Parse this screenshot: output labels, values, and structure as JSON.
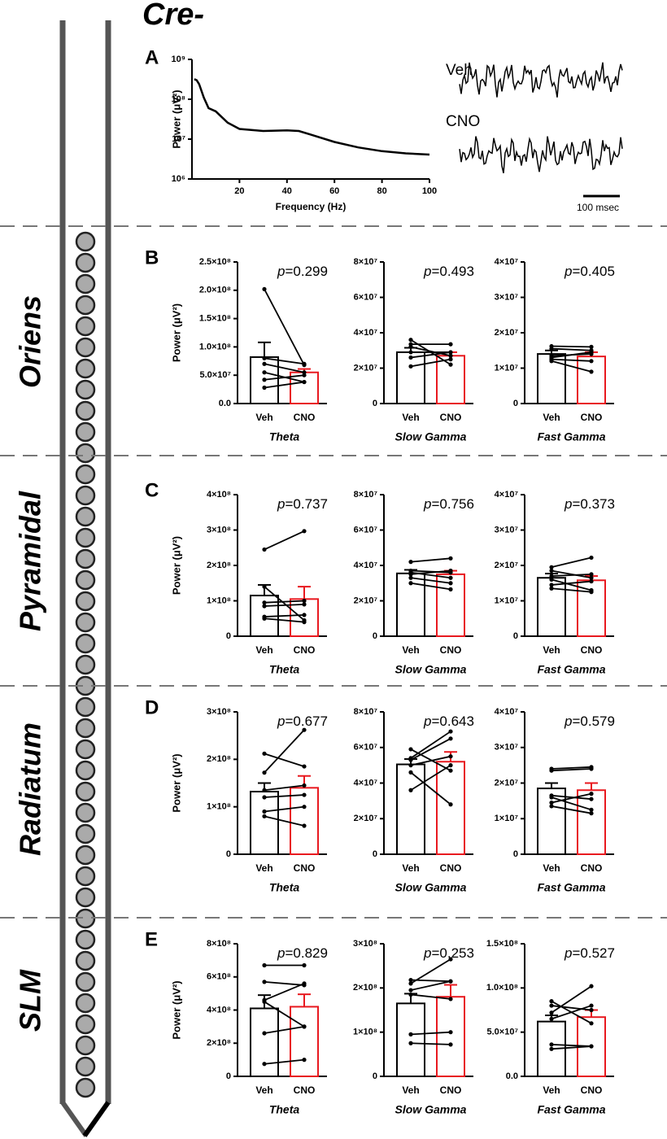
{
  "figure": {
    "title": "Cre-",
    "layers": [
      "Oriens",
      "Pyramidal",
      "Radiatum",
      "SLM"
    ],
    "panels": [
      "A",
      "B",
      "C",
      "D",
      "E"
    ]
  },
  "chart_data": [
    {
      "type": "line",
      "log_y": true,
      "color": "#000000",
      "xlabel": "Frequency (Hz)",
      "ylabel": "Power (μV²)",
      "x": [
        1,
        2,
        3,
        5,
        7,
        10,
        15,
        20,
        30,
        40,
        45,
        50,
        60,
        70,
        80,
        90,
        100
      ],
      "values": [
        320000000.0,
        300000000.0,
        240000000.0,
        110000000.0,
        60000000.0,
        50000000.0,
        26000000.0,
        18000000.0,
        16000000.0,
        16500000.0,
        16000000.0,
        13000000.0,
        8500000.0,
        6200000.0,
        5000000.0,
        4400000.0,
        4100000.0
      ],
      "xlim": [
        0,
        100
      ],
      "xticks": [
        20,
        40,
        60,
        80,
        100
      ],
      "ylim": [
        1000000.0,
        1000000000.0
      ],
      "yticks": [
        {
          "value": 1000000.0,
          "label": "10⁶"
        },
        {
          "value": 10000000.0,
          "label": "10⁷"
        },
        {
          "value": 100000000.0,
          "label": "10⁸"
        },
        {
          "value": 1000000000.0,
          "label": "10⁹"
        }
      ],
      "annotations": [
        "Veh",
        "CNO",
        "100 msec"
      ]
    },
    {
      "type": "bar",
      "categories": [
        "Veh",
        "CNO"
      ],
      "values": [
        82000000.0,
        55000000.0
      ],
      "errors": [
        26000000.0,
        6000000.0
      ],
      "colors": [
        "#000000",
        "#e8191f"
      ],
      "pairs": [
        [
          202000000.0,
          68000000.0
        ],
        [
          80000000.0,
          70000000.0
        ],
        [
          70000000.0,
          55000000.0
        ],
        [
          55000000.0,
          38000000.0
        ],
        [
          42000000.0,
          50000000.0
        ],
        [
          28000000.0,
          38000000.0
        ]
      ],
      "ylim": [
        0,
        250000000.0
      ],
      "yticks": [
        {
          "value": 0,
          "label": "0.0"
        },
        {
          "value": 50000000.0,
          "label": "5.0×10⁷"
        },
        {
          "value": 100000000.0,
          "label": "1.0×10⁸"
        },
        {
          "value": 150000000.0,
          "label": "1.5×10⁸"
        },
        {
          "value": 200000000.0,
          "label": "2.0×10⁸"
        },
        {
          "value": 250000000.0,
          "label": "2.5×10⁸"
        }
      ],
      "xlabel": "Theta",
      "ylabel": "Power (μV²)",
      "annotation": [
        "p",
        "=0.299"
      ]
    },
    {
      "type": "bar",
      "categories": [
        "Veh",
        "CNO"
      ],
      "values": [
        29000000.0,
        27000000.0
      ],
      "errors": [
        2500000.0,
        2000000.0
      ],
      "colors": [
        "#000000",
        "#e8191f"
      ],
      "pairs": [
        [
          36000000.0,
          22000000.0
        ],
        [
          33500000.0,
          33500000.0
        ],
        [
          32000000.0,
          27000000.0
        ],
        [
          29000000.0,
          29000000.0
        ],
        [
          26000000.0,
          29000000.0
        ],
        [
          21000000.0,
          25000000.0
        ]
      ],
      "ylim": [
        0,
        80000000.0
      ],
      "yticks": [
        0,
        {
          "value": 20000000.0,
          "label": "2×10⁷"
        },
        {
          "value": 40000000.0,
          "label": "4×10⁷"
        },
        {
          "value": 60000000.0,
          "label": "6×10⁷"
        },
        {
          "value": 80000000.0,
          "label": "8×10⁷"
        }
      ],
      "xlabel": "Slow Gamma",
      "annotation": [
        "p",
        "=0.493"
      ]
    },
    {
      "type": "bar",
      "categories": [
        "Veh",
        "CNO"
      ],
      "values": [
        14000000.0,
        13300000.0
      ],
      "errors": [
        1000000.0,
        1200000.0
      ],
      "colors": [
        "#000000",
        "#e8191f"
      ],
      "pairs": [
        [
          16200000.0,
          16000000.0
        ],
        [
          15500000.0,
          15000000.0
        ],
        [
          13500000.0,
          14000000.0
        ],
        [
          13000000.0,
          14500000.0
        ],
        [
          12500000.0,
          12000000.0
        ],
        [
          12000000.0,
          9000000.0
        ]
      ],
      "ylim": [
        0,
        40000000.0
      ],
      "yticks": [
        0,
        {
          "value": 10000000.0,
          "label": "1×10⁷"
        },
        {
          "value": 20000000.0,
          "label": "2×10⁷"
        },
        {
          "value": 30000000.0,
          "label": "3×10⁷"
        },
        {
          "value": 40000000.0,
          "label": "4×10⁷"
        }
      ],
      "xlabel": "Fast Gamma",
      "annotation": [
        "p",
        "=0.405"
      ]
    },
    {
      "type": "bar",
      "categories": [
        "Veh",
        "CNO"
      ],
      "values": [
        115000000.0,
        105000000.0
      ],
      "errors": [
        30000000.0,
        35000000.0
      ],
      "colors": [
        "#000000",
        "#e8191f"
      ],
      "pairs": [
        [
          245000000.0,
          297000000.0
        ],
        [
          140000000.0,
          45000000.0
        ],
        [
          95000000.0,
          100000000.0
        ],
        [
          85000000.0,
          90000000.0
        ],
        [
          55000000.0,
          60000000.0
        ],
        [
          50000000.0,
          40000000.0
        ]
      ],
      "ylim": [
        0,
        400000000.0
      ],
      "yticks": [
        0,
        {
          "value": 100000000.0,
          "label": "1×10⁸"
        },
        {
          "value": 200000000.0,
          "label": "2×10⁸"
        },
        {
          "value": 300000000.0,
          "label": "3×10⁸"
        },
        {
          "value": 400000000.0,
          "label": "4×10⁸"
        }
      ],
      "xlabel": "Theta",
      "ylabel": "Power (μV²)",
      "annotation": [
        "p",
        "=0.737"
      ]
    },
    {
      "type": "bar",
      "categories": [
        "Veh",
        "CNO"
      ],
      "values": [
        35500000.0,
        35000000.0
      ],
      "errors": [
        2000000.0,
        2000000.0
      ],
      "colors": [
        "#000000",
        "#e8191f"
      ],
      "pairs": [
        [
          42000000.0,
          44000000.0
        ],
        [
          37000000.0,
          36000000.0
        ],
        [
          36000000.0,
          33000000.0
        ],
        [
          35000000.0,
          37000000.0
        ],
        [
          33000000.0,
          30000000.0
        ],
        [
          30000000.0,
          26500000.0
        ]
      ],
      "ylim": [
        0,
        80000000.0
      ],
      "yticks": [
        0,
        {
          "value": 20000000.0,
          "label": "2×10⁷"
        },
        {
          "value": 40000000.0,
          "label": "4×10⁷"
        },
        {
          "value": 60000000.0,
          "label": "6×10⁷"
        },
        {
          "value": 80000000.0,
          "label": "8×10⁷"
        }
      ],
      "xlabel": "Slow Gamma",
      "annotation": [
        "p",
        "=0.756"
      ]
    },
    {
      "type": "bar",
      "categories": [
        "Veh",
        "CNO"
      ],
      "values": [
        16500000.0,
        15800000.0
      ],
      "errors": [
        1200000.0,
        1200000.0
      ],
      "colors": [
        "#000000",
        "#e8191f"
      ],
      "pairs": [
        [
          19500000.0,
          22200000.0
        ],
        [
          18500000.0,
          16500000.0
        ],
        [
          17000000.0,
          17500000.0
        ],
        [
          16000000.0,
          13000000.0
        ],
        [
          14500000.0,
          15500000.0
        ],
        [
          13500000.0,
          12500000.0
        ]
      ],
      "ylim": [
        0,
        40000000.0
      ],
      "yticks": [
        0,
        {
          "value": 10000000.0,
          "label": "1×10⁷"
        },
        {
          "value": 20000000.0,
          "label": "2×10⁷"
        },
        {
          "value": 30000000.0,
          "label": "3×10⁷"
        },
        {
          "value": 40000000.0,
          "label": "4×10⁷"
        }
      ],
      "xlabel": "Fast Gamma",
      "annotation": [
        "p",
        "=0.373"
      ]
    },
    {
      "type": "bar",
      "categories": [
        "Veh",
        "CNO"
      ],
      "values": [
        132000000.0,
        140000000.0
      ],
      "errors": [
        18000000.0,
        25000000.0
      ],
      "colors": [
        "#000000",
        "#e8191f"
      ],
      "pairs": [
        [
          212000000.0,
          185000000.0
        ],
        [
          172000000.0,
          262000000.0
        ],
        [
          135000000.0,
          145000000.0
        ],
        [
          120000000.0,
          125000000.0
        ],
        [
          90000000.0,
          100000000.0
        ],
        [
          80000000.0,
          60000000.0
        ]
      ],
      "ylim": [
        0,
        300000000.0
      ],
      "yticks": [
        0,
        {
          "value": 100000000.0,
          "label": "1×10⁸"
        },
        {
          "value": 200000000.0,
          "label": "2×10⁸"
        },
        {
          "value": 300000000.0,
          "label": "3×10⁸"
        }
      ],
      "xlabel": "Theta",
      "ylabel": "Power (μV²)",
      "annotation": [
        "p",
        "=0.677"
      ]
    },
    {
      "type": "bar",
      "categories": [
        "Veh",
        "CNO"
      ],
      "values": [
        50500000.0,
        52000000.0
      ],
      "errors": [
        3000000.0,
        5500000.0
      ],
      "colors": [
        "#000000",
        "#e8191f"
      ],
      "pairs": [
        [
          59000000.0,
          47000000.0
        ],
        [
          54000000.0,
          69000000.0
        ],
        [
          53000000.0,
          65000000.0
        ],
        [
          50000000.0,
          55000000.0
        ],
        [
          46000000.0,
          28000000.0
        ],
        [
          36000000.0,
          50000000.0
        ]
      ],
      "ylim": [
        0,
        80000000.0
      ],
      "yticks": [
        0,
        {
          "value": 20000000.0,
          "label": "2×10⁷"
        },
        {
          "value": 40000000.0,
          "label": "4×10⁷"
        },
        {
          "value": 60000000.0,
          "label": "6×10⁷"
        },
        {
          "value": 80000000.0,
          "label": "8×10⁷"
        }
      ],
      "xlabel": "Slow Gamma",
      "annotation": [
        "p",
        "=0.643"
      ]
    },
    {
      "type": "bar",
      "categories": [
        "Veh",
        "CNO"
      ],
      "values": [
        18500000.0,
        18000000.0
      ],
      "errors": [
        1500000.0,
        2000000.0
      ],
      "colors": [
        "#000000",
        "#e8191f"
      ],
      "pairs": [
        [
          24000000.0,
          24500000.0
        ],
        [
          23500000.0,
          24000000.0
        ],
        [
          16500000.0,
          15500000.0
        ],
        [
          16000000.0,
          12500000.0
        ],
        [
          14500000.0,
          17000000.0
        ],
        [
          13500000.0,
          11500000.0
        ]
      ],
      "ylim": [
        0,
        40000000.0
      ],
      "yticks": [
        0,
        {
          "value": 10000000.0,
          "label": "1×10⁷"
        },
        {
          "value": 20000000.0,
          "label": "2×10⁷"
        },
        {
          "value": 30000000.0,
          "label": "3×10⁷"
        },
        {
          "value": 40000000.0,
          "label": "4×10⁷"
        }
      ],
      "xlabel": "Fast Gamma",
      "annotation": [
        "p",
        "=0.579"
      ]
    },
    {
      "type": "bar",
      "categories": [
        "Veh",
        "CNO"
      ],
      "values": [
        410000000.0,
        420000000.0
      ],
      "errors": [
        80000000.0,
        75000000.0
      ],
      "colors": [
        "#000000",
        "#e8191f"
      ],
      "pairs": [
        [
          670000000.0,
          670000000.0
        ],
        [
          570000000.0,
          550000000.0
        ],
        [
          460000000.0,
          560000000.0
        ],
        [
          450000000.0,
          300000000.0
        ],
        [
          260000000.0,
          300000000.0
        ],
        [
          75000000.0,
          100000000.0
        ]
      ],
      "ylim": [
        0,
        800000000.0
      ],
      "yticks": [
        0,
        {
          "value": 200000000.0,
          "label": "2×10⁸"
        },
        {
          "value": 400000000.0,
          "label": "4×10⁸"
        },
        {
          "value": 600000000.0,
          "label": "6×10⁸"
        },
        {
          "value": 800000000.0,
          "label": "8×10⁸"
        }
      ],
      "xlabel": "Theta",
      "ylabel": "Power (μV²)",
      "annotation": [
        "p",
        "=0.829"
      ]
    },
    {
      "type": "bar",
      "categories": [
        "Veh",
        "CNO"
      ],
      "values": [
        165000000.0,
        180000000.0
      ],
      "errors": [
        22000000.0,
        27000000.0
      ],
      "colors": [
        "#000000",
        "#e8191f"
      ],
      "pairs": [
        [
          218000000.0,
          215000000.0
        ],
        [
          210000000.0,
          265000000.0
        ],
        [
          195000000.0,
          215000000.0
        ],
        [
          185000000.0,
          175000000.0
        ],
        [
          95000000.0,
          100000000.0
        ],
        [
          75000000.0,
          72000000.0
        ]
      ],
      "ylim": [
        0,
        300000000.0
      ],
      "yticks": [
        0,
        {
          "value": 100000000.0,
          "label": "1×10⁸"
        },
        {
          "value": 200000000.0,
          "label": "2×10⁸"
        },
        {
          "value": 300000000.0,
          "label": "3×10⁸"
        }
      ],
      "xlabel": "Slow Gamma",
      "annotation": [
        "p",
        "=0.253"
      ]
    },
    {
      "type": "bar",
      "categories": [
        "Veh",
        "CNO"
      ],
      "values": [
        62000000.0,
        67000000.0
      ],
      "errors": [
        7000000.0,
        8000000.0
      ],
      "colors": [
        "#000000",
        "#e8191f"
      ],
      "pairs": [
        [
          85000000.0,
          60000000.0
        ],
        [
          80000000.0,
          75000000.0
        ],
        [
          72000000.0,
          102000000.0
        ],
        [
          65000000.0,
          80000000.0
        ],
        [
          36000000.0,
          34000000.0
        ],
        [
          31000000.0,
          34000000.0
        ]
      ],
      "ylim": [
        0,
        150000000.0
      ],
      "yticks": [
        {
          "value": 0,
          "label": "0.0"
        },
        {
          "value": 50000000.0,
          "label": "5.0×10⁷"
        },
        {
          "value": 100000000.0,
          "label": "1.0×10⁸"
        },
        {
          "value": 150000000.0,
          "label": "1.5×10⁸"
        }
      ],
      "xlabel": "Fast Gamma",
      "annotation": [
        "p",
        "=0.527"
      ]
    }
  ]
}
